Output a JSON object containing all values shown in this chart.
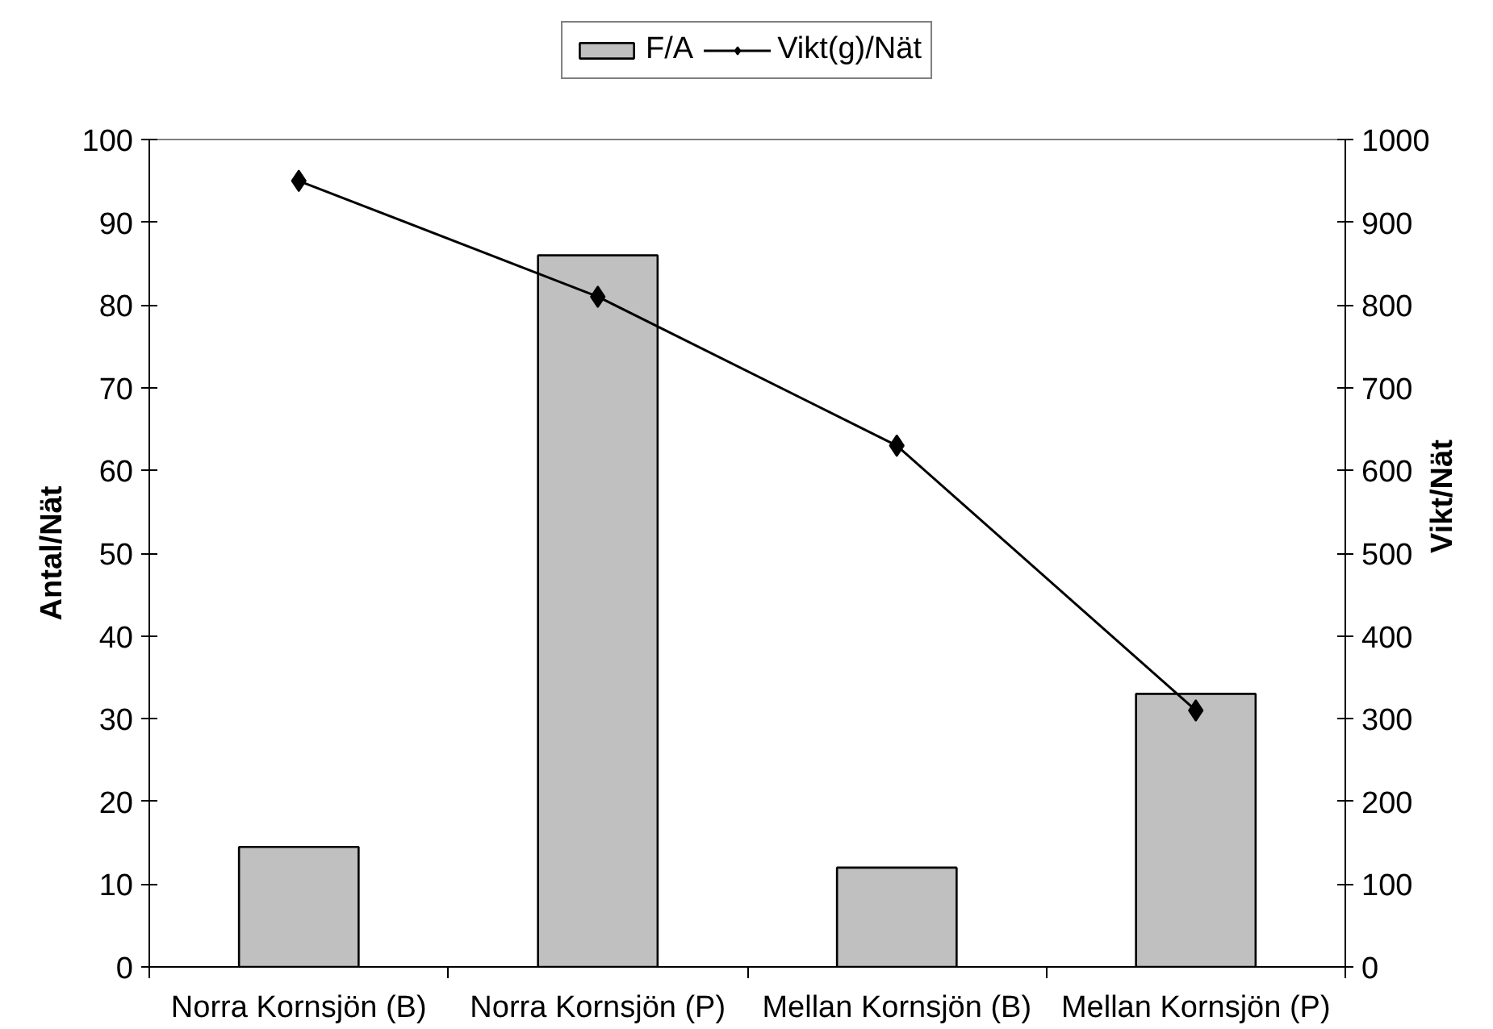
{
  "chart_data": {
    "type": "bar",
    "categories": [
      "Norra Kornsjön (B)",
      "Norra Kornsjön (P)",
      "Mellan Kornsjön (B)",
      "Mellan Kornsjön (P)"
    ],
    "ylabel": "Antal/Nät",
    "y2label": "Vikt/Nät",
    "ylim": [
      0,
      100
    ],
    "yticks": [
      0,
      10,
      20,
      30,
      40,
      50,
      60,
      70,
      80,
      90,
      100
    ],
    "y2lim": [
      0,
      1000
    ],
    "y2ticks": [
      0,
      100,
      200,
      300,
      400,
      500,
      600,
      700,
      800,
      900,
      1000
    ],
    "series": [
      {
        "name": "F/A",
        "color": "#c0c0c0",
        "values": [
          14.5,
          86,
          12,
          33
        ]
      },
      {
        "name": "Vikt(g)/Nät",
        "type": "line",
        "axis": "y2",
        "color": "#000000",
        "values": [
          950,
          810,
          630,
          310
        ]
      }
    ],
    "marker": "diamond",
    "legend": "top",
    "grid": false
  }
}
